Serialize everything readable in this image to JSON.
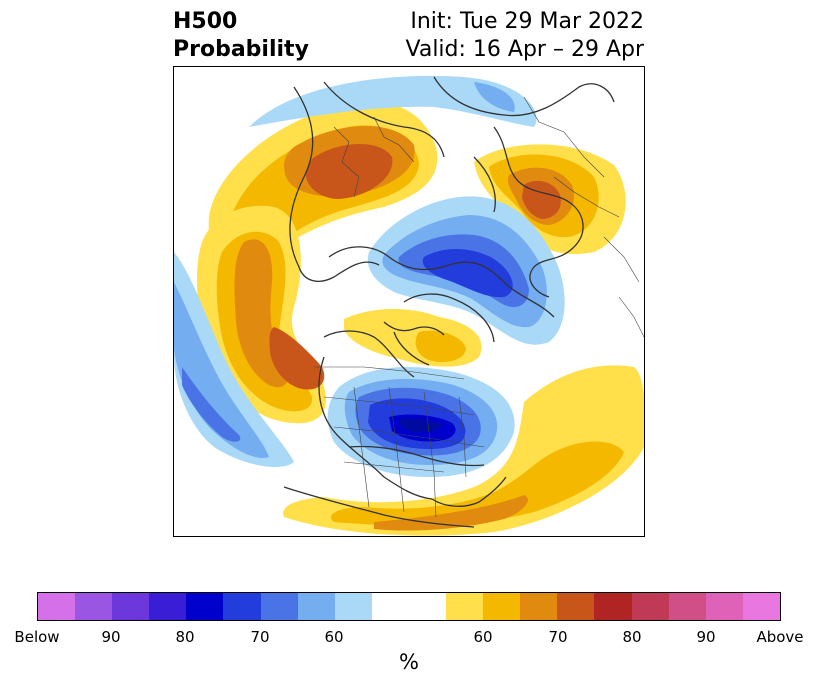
{
  "title": {
    "line1": "H500",
    "line2": "Probability",
    "init": "Init: Tue 29 Mar 2022",
    "valid": "Valid: 16 Apr – 29 Apr"
  },
  "colorbar": {
    "colors": [
      "#d470e8",
      "#9b55e3",
      "#6d38db",
      "#3a1ed6",
      "#0000cc",
      "#233cdc",
      "#4a74e6",
      "#74aef0",
      "#aad9f8",
      "#ffffff",
      "#ffffff",
      "#ffe04a",
      "#f5b800",
      "#e08a10",
      "#c8561a",
      "#b02424",
      "#c13a55",
      "#cf4f86",
      "#de62b8",
      "#e878e0"
    ],
    "tick_labels": [
      "Below",
      "90",
      "80",
      "70",
      "60",
      "60",
      "70",
      "80",
      "90",
      "Above"
    ],
    "unit": "%"
  },
  "legend_meaning": {
    "below_colors": "blue-purple shades (below normal)",
    "above_colors": "yellow-orange-red shades (above normal)"
  }
}
